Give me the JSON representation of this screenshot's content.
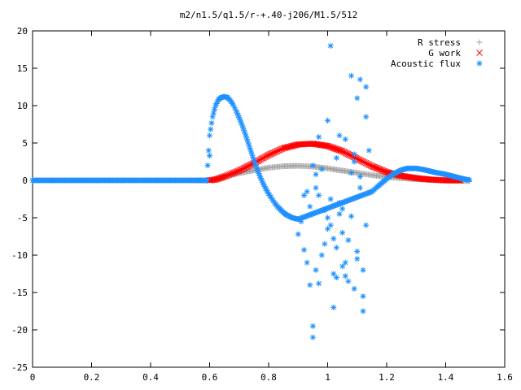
{
  "chart_data": {
    "type": "scatter",
    "title": "m2/n1.5/q1.5/r-+.40-j206/M1.5/512",
    "xlabel": "",
    "ylabel": "",
    "xlim": [
      0,
      1.6
    ],
    "ylim": [
      -25,
      20
    ],
    "x_ticks": [
      "0",
      "0.2",
      "0.4",
      "0.6",
      "0.8",
      "1",
      "1.2",
      "1.4",
      "1.6"
    ],
    "y_ticks": [
      "20",
      "15",
      "10",
      "5",
      "0",
      "-5",
      "-10",
      "-15",
      "-20",
      "-25"
    ],
    "grid": false,
    "legend_position": "top-right",
    "series": [
      {
        "name": "R stress",
        "marker": "+",
        "color": "#a0a0a0",
        "x": [
          0.0,
          0.1,
          0.2,
          0.3,
          0.4,
          0.5,
          0.58,
          0.6,
          0.62,
          0.65,
          0.7,
          0.75,
          0.8,
          0.85,
          0.9,
          0.95,
          1.0,
          1.05,
          1.1,
          1.15,
          1.2,
          1.25,
          1.3,
          1.35,
          1.4,
          1.45,
          1.48
        ],
        "y": [
          0,
          0,
          0,
          0,
          0,
          0,
          0,
          0.05,
          0.2,
          0.5,
          0.95,
          1.35,
          1.7,
          1.9,
          1.95,
          1.85,
          1.6,
          1.3,
          1.0,
          0.7,
          0.45,
          0.3,
          0.15,
          0.05,
          0.0,
          -0.05,
          -0.1
        ]
      },
      {
        "name": "G work",
        "marker": "x",
        "color": "#ff0000",
        "x": [
          0.6,
          0.62,
          0.65,
          0.7,
          0.75,
          0.8,
          0.85,
          0.9,
          0.95,
          1.0,
          1.05,
          1.1,
          1.15,
          1.2,
          1.25,
          1.3,
          1.35,
          1.4,
          1.45
        ],
        "y": [
          0,
          0.1,
          0.5,
          1.3,
          2.3,
          3.4,
          4.3,
          4.8,
          4.9,
          4.6,
          3.9,
          2.9,
          1.9,
          1.1,
          0.6,
          0.3,
          0.1,
          0.0,
          0.0
        ]
      },
      {
        "name": "Acoustic flux",
        "marker": "*",
        "color": "#1e90ff",
        "curve": {
          "x": [
            0.0,
            0.1,
            0.2,
            0.3,
            0.4,
            0.5,
            0.59,
            0.6,
            0.61,
            0.62,
            0.63,
            0.64,
            0.65,
            0.66,
            0.67,
            0.68,
            0.69,
            0.7,
            0.71,
            0.72,
            0.73,
            0.74,
            0.75,
            0.76,
            0.77,
            0.78,
            0.79,
            0.8,
            0.81,
            0.82,
            0.83,
            0.84,
            0.85,
            0.86,
            0.87,
            0.88,
            0.89,
            0.9,
            1.15,
            1.17,
            1.2,
            1.22,
            1.25,
            1.27,
            1.3,
            1.33,
            1.36,
            1.4,
            1.43,
            1.46,
            1.48
          ],
          "y": [
            0,
            0,
            0,
            0,
            0,
            0,
            0,
            6.0,
            8.5,
            10.0,
            10.8,
            11.1,
            11.2,
            11.1,
            10.7,
            10.1,
            9.3,
            8.4,
            7.4,
            6.3,
            5.1,
            3.9,
            2.7,
            1.6,
            0.6,
            -0.3,
            -1.1,
            -1.8,
            -2.4,
            -3.0,
            -3.5,
            -3.9,
            -4.3,
            -4.6,
            -4.8,
            -5.0,
            -5.1,
            -5.2,
            -1.5,
            -0.8,
            0.2,
            0.8,
            1.4,
            1.6,
            1.6,
            1.4,
            1.1,
            0.8,
            0.5,
            0.2,
            0.05
          ]
        },
        "scatter": {
          "x": [
            0.6,
            0.9,
            0.92,
            0.93,
            0.94,
            0.95,
            0.95,
            0.96,
            0.97,
            0.97,
            0.98,
            0.99,
            1.0,
            1.0,
            1.01,
            1.02,
            1.02,
            1.03,
            1.04,
            1.04,
            1.05,
            1.06,
            1.07,
            1.08,
            1.09,
            1.1,
            1.1,
            1.11,
            1.12,
            1.12,
            1.13,
            1.13,
            1.14,
            0.93,
            0.94,
            0.96,
            0.98,
            1.01,
            1.03,
            1.05,
            1.07,
            1.09,
            1.11,
            1.03,
            1.06,
            1.08,
            1.1,
            1.12,
            0.95,
            0.99,
            1.04,
            1.08,
            0.91,
            0.97,
            1.0,
            1.02,
            1.06,
            1.09,
            1.13,
            0.92,
            0.96,
            1.01,
            1.05,
            1.11
          ],
          "y": [
            3.3,
            -7.2,
            -9.3,
            -11.0,
            -14.0,
            -21.0,
            -19.5,
            -12.0,
            -2.0,
            5.8,
            -10.0,
            -4.0,
            8.0,
            -6.5,
            18.0,
            -17.0,
            -12.5,
            -9.0,
            6.0,
            -4.5,
            -7.0,
            5.5,
            -13.5,
            14.0,
            2.5,
            11.0,
            -10.5,
            13.5,
            -17.5,
            -15.5,
            -6.0,
            8.5,
            4.0,
            -1.5,
            -3.5,
            -1.0,
            1.5,
            -2.5,
            3.0,
            -11.5,
            -8.0,
            -14.5,
            0.5,
            -13.0,
            -11.0,
            -4.8,
            -9.5,
            -12.0,
            2.0,
            -8.5,
            -3.0,
            1.0,
            -5.5,
            -13.8,
            -5.0,
            -7.8,
            -12.8,
            3.5,
            12.5,
            -2.0,
            0.8,
            -6.0,
            -3.8,
            -1.0
          ]
        }
      }
    ]
  }
}
